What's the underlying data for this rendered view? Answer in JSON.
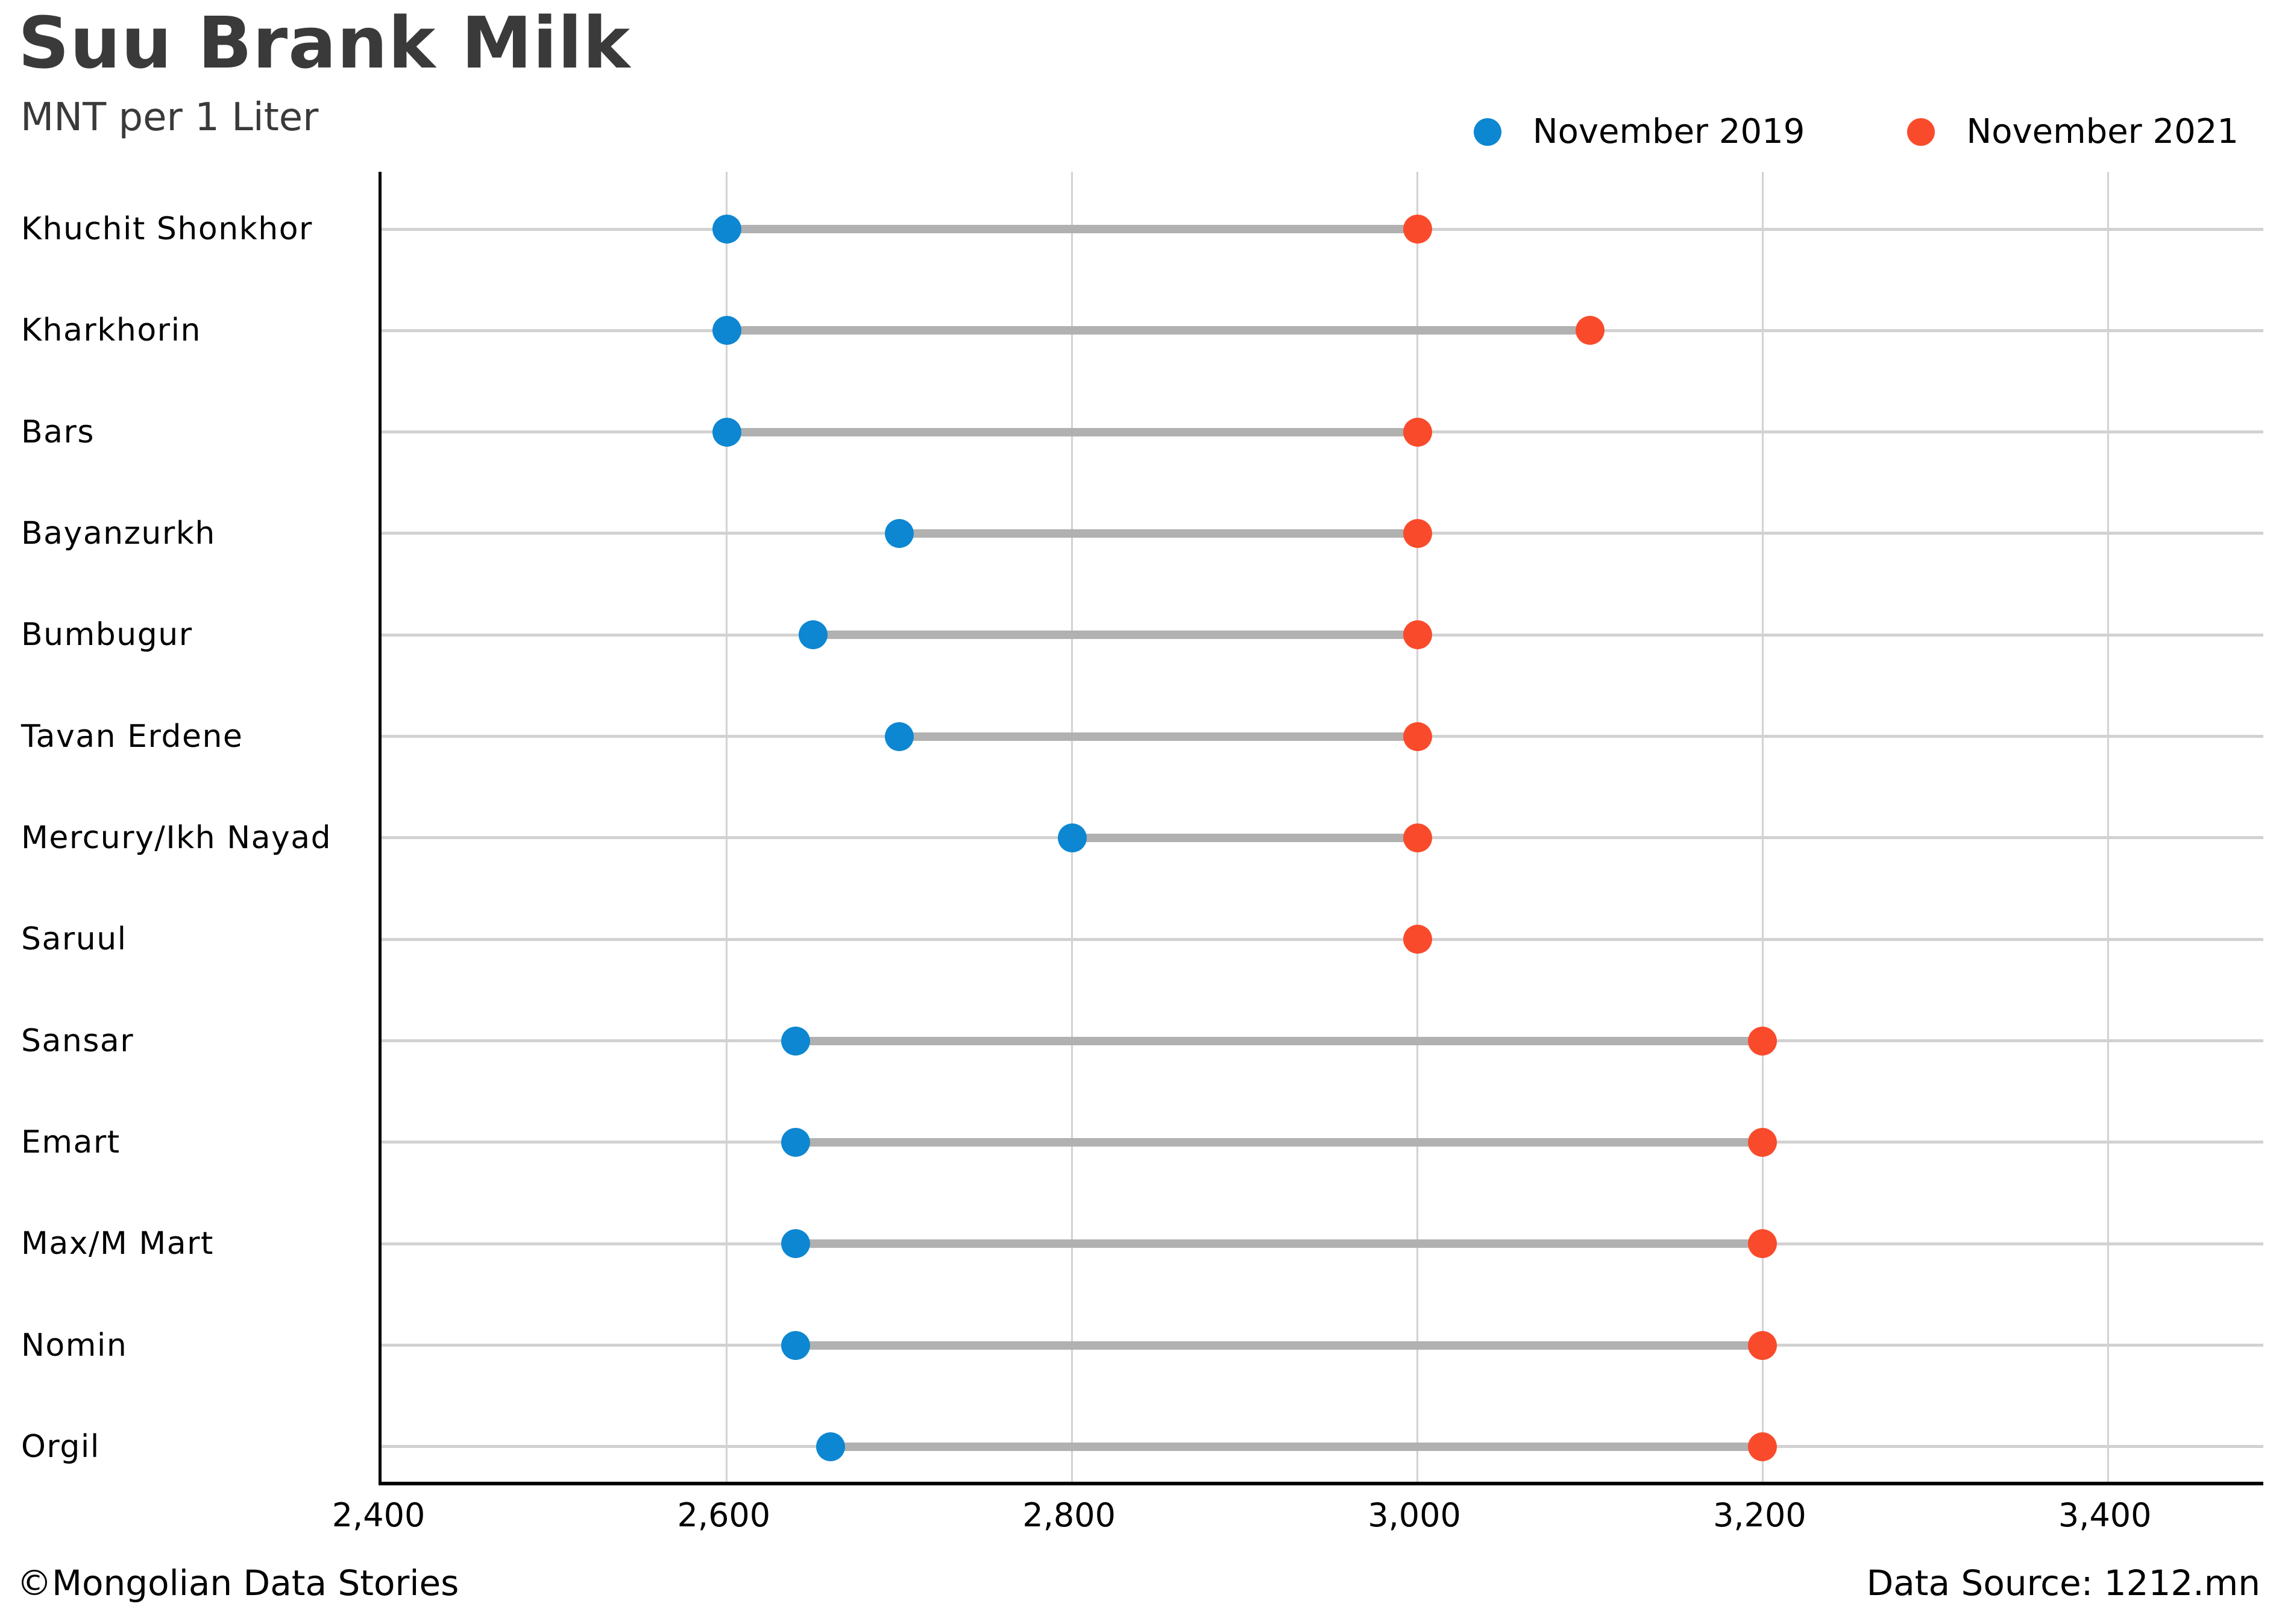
{
  "header": {
    "title": "Suu Brank Milk",
    "subtitle": "MNT per 1 Liter"
  },
  "footer": {
    "left": "©Mongolian Data Stories",
    "right": "Data Source: 1212.mn"
  },
  "colors": {
    "series_2019": "#0d87d1",
    "series_2021": "#f94b2b",
    "connector": "#b1b1b1",
    "gridline": "#d2d2d2",
    "axis": "#000000",
    "title_text": "#3a3a3a"
  },
  "chart_data": {
    "type": "scatter",
    "subtype": "dumbbell",
    "title": "Suu Brank Milk",
    "subtitle": "MNT per 1 Liter",
    "xlabel": "",
    "ylabel": "",
    "categories": [
      "Khuchit Shonkhor",
      "Kharkhorin",
      "Bars",
      "Bayanzurkh",
      "Bumbugur",
      "Tavan Erdene",
      "Mercury/Ikh Nayad",
      "Saruul",
      "Sansar",
      "Emart",
      "Max/M Mart",
      "Nomin",
      "Orgil"
    ],
    "series": [
      {
        "name": "November 2019",
        "color": "#0d87d1",
        "values": [
          2600,
          2600,
          2600,
          2700,
          2650,
          2700,
          2800,
          null,
          2640,
          2640,
          2640,
          2640,
          2660
        ]
      },
      {
        "name": "November 2021",
        "color": "#f94b2b",
        "values": [
          3000,
          3100,
          3000,
          3000,
          3000,
          3000,
          3000,
          3000,
          3200,
          3200,
          3200,
          3200,
          3200
        ]
      }
    ],
    "xticks": [
      2400,
      2600,
      2800,
      3000,
      3200,
      3400
    ],
    "xtick_labels": [
      "2,400",
      "2,600",
      "2,800",
      "3,000",
      "3,200",
      "3,400"
    ],
    "xlim": [
      2400,
      3490
    ],
    "grid": true,
    "legend_position": "top-right"
  }
}
